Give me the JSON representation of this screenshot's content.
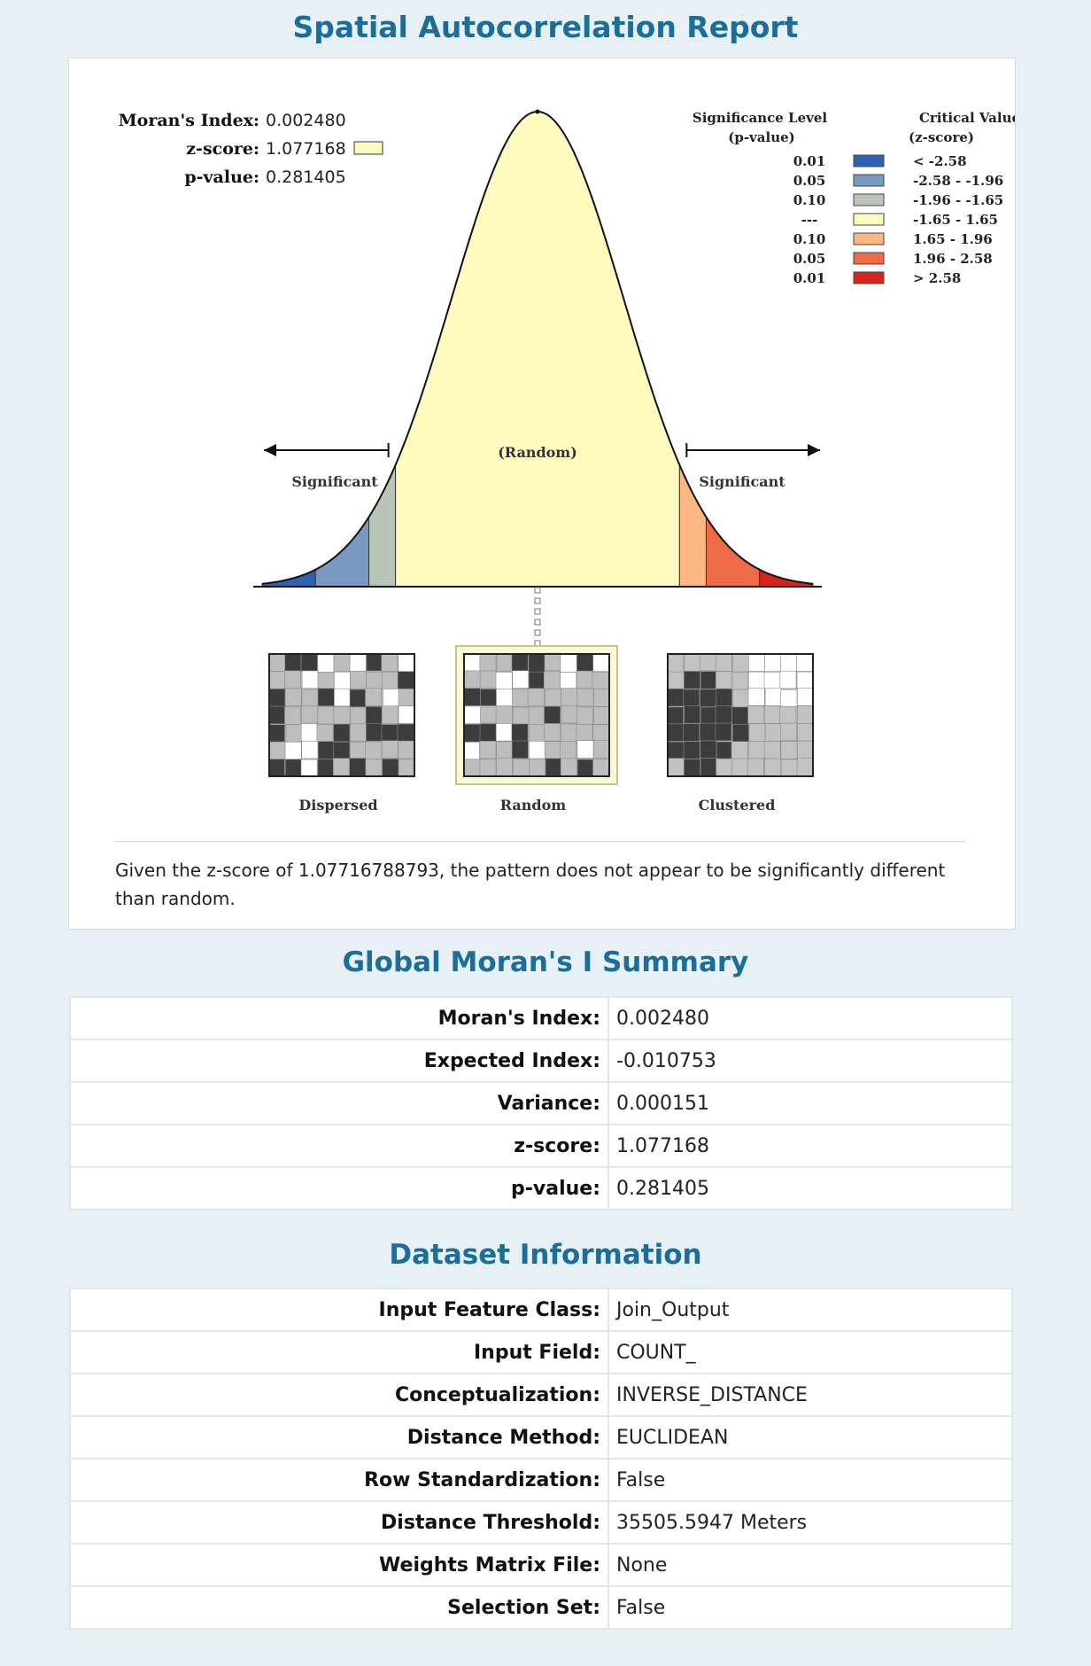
{
  "report_title": "Spatial Autocorrelation Report",
  "stats": {
    "morans_label": "Moran's Index:",
    "morans_value": "0.002480",
    "z_label": "z-score:",
    "z_value": "1.077168",
    "p_label": "p-value:",
    "p_value": "0.281405",
    "z_swatch_color": "#fffbbf"
  },
  "legend": {
    "sig_header_1": "Significance Level",
    "sig_header_2": "(p-value)",
    "crit_header_1": "Critical Value",
    "crit_header_2": "(z-score)",
    "rows": [
      {
        "p": "0.01",
        "color": "#2e62b1",
        "range": "< -2.58"
      },
      {
        "p": "0.05",
        "color": "#7a99c1",
        "range": "-2.58 - -1.96"
      },
      {
        "p": "0.10",
        "color": "#b9c6b7",
        "range": "-1.96 - -1.65"
      },
      {
        "p": "---",
        "color": "#fffbbf",
        "range": "-1.65 - 1.65"
      },
      {
        "p": "0.10",
        "color": "#fbb883",
        "range": "1.65 - 1.96"
      },
      {
        "p": "0.05",
        "color": "#ee6b46",
        "range": "1.96 - 2.58"
      },
      {
        "p": "0.01",
        "color": "#d6241b",
        "range": "> 2.58"
      }
    ]
  },
  "chart_data": {
    "type": "area",
    "curve": "standard normal distribution",
    "xlim": [
      -3.2,
      3.2
    ],
    "bands": [
      {
        "from": -3.2,
        "to": -2.58,
        "color": "#2e62b1"
      },
      {
        "from": -2.58,
        "to": -1.96,
        "color": "#7a99c1"
      },
      {
        "from": -1.96,
        "to": -1.65,
        "color": "#b9c6b7"
      },
      {
        "from": -1.65,
        "to": 1.65,
        "color": "#fffbbf"
      },
      {
        "from": 1.65,
        "to": 1.96,
        "color": "#fbb883"
      },
      {
        "from": 1.96,
        "to": 2.58,
        "color": "#ee6b46"
      },
      {
        "from": 2.58,
        "to": 3.2,
        "color": "#d6241b"
      }
    ],
    "annotations": {
      "left": "Significant",
      "center": "(Random)",
      "right": "Significant"
    },
    "z_marker": 0.0
  },
  "patterns": [
    {
      "label": "Dispersed",
      "selected": false
    },
    {
      "label": "Random",
      "selected": true
    },
    {
      "label": "Clustered",
      "selected": false
    }
  ],
  "conclusion": "Given the z-score of 1.07716788793, the pattern does not appear to be significantly different than random.",
  "summary_title": "Global Moran's I Summary",
  "summary_rows": [
    {
      "k": "Moran's Index:",
      "v": "0.002480"
    },
    {
      "k": "Expected Index:",
      "v": "-0.010753"
    },
    {
      "k": "Variance:",
      "v": "0.000151"
    },
    {
      "k": "z-score:",
      "v": "1.077168"
    },
    {
      "k": "p-value:",
      "v": "0.281405"
    }
  ],
  "dataset_title": "Dataset Information",
  "dataset_rows": [
    {
      "k": "Input Feature Class:",
      "v": "Join_Output"
    },
    {
      "k": "Input Field:",
      "v": "COUNT_"
    },
    {
      "k": "Conceptualization:",
      "v": "INVERSE_DISTANCE"
    },
    {
      "k": "Distance Method:",
      "v": "EUCLIDEAN"
    },
    {
      "k": "Row Standardization:",
      "v": "False"
    },
    {
      "k": "Distance Threshold:",
      "v": "35505.5947 Meters"
    },
    {
      "k": "Weights Matrix File:",
      "v": "None"
    },
    {
      "k": "Selection Set:",
      "v": "False"
    }
  ]
}
